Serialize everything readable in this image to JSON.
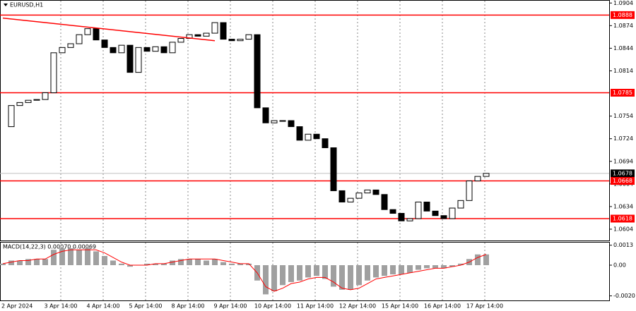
{
  "chart_data": {
    "type": "candlestick",
    "title": "EURUSD,H1",
    "categories": [
      "2 Apr 2024",
      "3 Apr 14:00",
      "4 Apr 14:00",
      "5 Apr 14:00",
      "8 Apr 14:00",
      "9 Apr 14:00",
      "10 Apr 14:00",
      "11 Apr 14:00",
      "12 Apr 14:00",
      "15 Apr 14:00",
      "16 Apr 14:00",
      "17 Apr 14:00"
    ],
    "closes": [
      1.074,
      1.0768,
      1.0772,
      1.0775,
      1.0776,
      1.0785,
      1.0838,
      1.0845,
      1.085,
      1.0862,
      1.087,
      1.0855,
      1.0845,
      1.0838,
      1.0848,
      1.0812,
      1.0845,
      1.084,
      1.0846,
      1.0838,
      1.0852,
      1.0857,
      1.0862,
      1.086,
      1.0864,
      1.0878,
      1.0856,
      1.0854,
      1.0856,
      1.0862,
      1.0765,
      1.0745,
      1.0748,
      1.0748,
      1.074,
      1.0722,
      1.073,
      1.0724,
      1.0712,
      1.0655,
      1.064,
      1.0645,
      1.0652,
      1.0656,
      1.065,
      1.063,
      1.0625,
      1.0615,
      1.0618,
      1.064,
      1.0628,
      1.0622,
      1.0618,
      1.0632,
      1.0642,
      1.0668,
      1.0674,
      1.0678
    ],
    "color": "#000000",
    "ylim": [
      1.0589,
      1.0908
    ],
    "yticks": [
      1.0904,
      1.0874,
      1.0844,
      1.0814,
      1.0754,
      1.0724,
      1.0694,
      1.0664,
      1.0634,
      1.0604
    ],
    "levels": [
      1.0888,
      1.0785,
      1.0668,
      1.0618
    ],
    "level_color": "#ff0000",
    "current_price": 1.0678,
    "trendline": [
      1.0884,
      null,
      null,
      null,
      null,
      null,
      null,
      null,
      null,
      null,
      null,
      null,
      null,
      null,
      null,
      null,
      null,
      null,
      null,
      null,
      null,
      null,
      null,
      null,
      null,
      1.0854,
      null,
      null,
      null,
      null,
      null,
      null,
      null,
      null,
      null,
      null,
      null,
      null,
      null,
      null,
      null,
      null,
      null,
      null,
      null,
      null,
      null,
      null,
      null,
      null,
      null,
      null,
      null,
      null,
      null,
      null,
      null,
      null
    ],
    "trendline_color": "#ff0000",
    "grid": true,
    "macd": {
      "title": "MACD(14,22,3) 0.00070 0.00069",
      "histogram": [
        0.0001,
        0.0003,
        0.0003,
        0.0004,
        0.0004,
        0.0004,
        0.001,
        0.0011,
        0.0011,
        0.001,
        0.0011,
        0.0009,
        0.0006,
        0.0003,
        0.0001,
        -0.0001,
        0.0,
        0.0001,
        0.0001,
        0.0001,
        0.0003,
        0.0004,
        0.0004,
        0.0004,
        0.0003,
        0.0004,
        0.0002,
        0.0001,
        0.0001,
        0.0001,
        -0.001,
        -0.0019,
        -0.0017,
        -0.0013,
        -0.0011,
        -0.001,
        -0.0008,
        -0.0007,
        -0.0009,
        -0.0014,
        -0.0016,
        -0.0016,
        -0.0013,
        -0.001,
        -0.0008,
        -0.0007,
        -0.0006,
        -0.0006,
        -0.0005,
        -0.0003,
        -0.0002,
        -0.0002,
        -0.0002,
        -0.0001,
        0.0001,
        0.0004,
        0.0007,
        0.0007
      ],
      "histogram_color": "#a0a0a0",
      "signal": [
        0.0001,
        0.0002,
        0.0003,
        0.0003,
        0.0004,
        0.0004,
        0.0007,
        0.0009,
        0.001,
        0.001,
        0.001,
        0.001,
        0.0008,
        0.0005,
        0.0002,
        0.0,
        0.0,
        0.0,
        0.0001,
        0.0001,
        0.0002,
        0.0003,
        0.0004,
        0.0004,
        0.0004,
        0.0004,
        0.0003,
        0.0002,
        0.0001,
        0.0001,
        -0.0005,
        -0.0014,
        -0.0017,
        -0.0015,
        -0.0012,
        -0.0011,
        -0.0009,
        -0.0008,
        -0.0008,
        -0.0011,
        -0.0015,
        -0.0016,
        -0.0015,
        -0.0012,
        -0.0009,
        -0.0008,
        -0.0007,
        -0.0006,
        -0.0005,
        -0.0004,
        -0.0003,
        -0.0002,
        -0.0002,
        -0.0001,
        0.0,
        0.0002,
        0.0005,
        0.0007
      ],
      "signal_color": "#ff0000",
      "ylim": [
        -0.00225,
        0.00147
      ],
      "yticks": [
        0.0013,
        {
          "value": 0,
          "label": "0.00"
        },
        {
          "value": -0.002,
          "label": "-0.0020"
        }
      ]
    }
  }
}
